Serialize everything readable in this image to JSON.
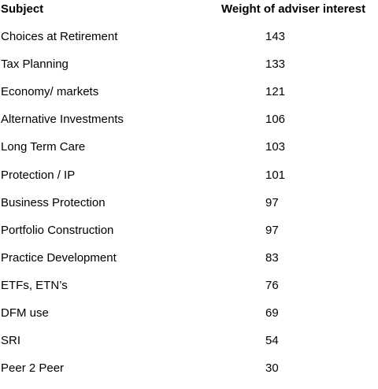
{
  "chart_data": {
    "type": "table",
    "columns": [
      "Subject",
      "Weight of adviser interest"
    ],
    "rows": [
      {
        "subject": "Choices at Retirement",
        "value": 143
      },
      {
        "subject": "Tax Planning",
        "value": 133
      },
      {
        "subject": "Economy/ markets",
        "value": 121
      },
      {
        "subject": "Alternative Investments",
        "value": 106
      },
      {
        "subject": "Long Term Care",
        "value": 103
      },
      {
        "subject": "Protection / IP",
        "value": 101
      },
      {
        "subject": "Business Protection",
        "value": 97
      },
      {
        "subject": "Portfolio Construction",
        "value": 97
      },
      {
        "subject": "Practice Development",
        "value": 83
      },
      {
        "subject": "ETFs, ETN’s",
        "value": 76
      },
      {
        "subject": "DFM use",
        "value": 69
      },
      {
        "subject": "SRI",
        "value": 54
      },
      {
        "subject": "Peer 2 Peer",
        "value": 30
      }
    ]
  }
}
